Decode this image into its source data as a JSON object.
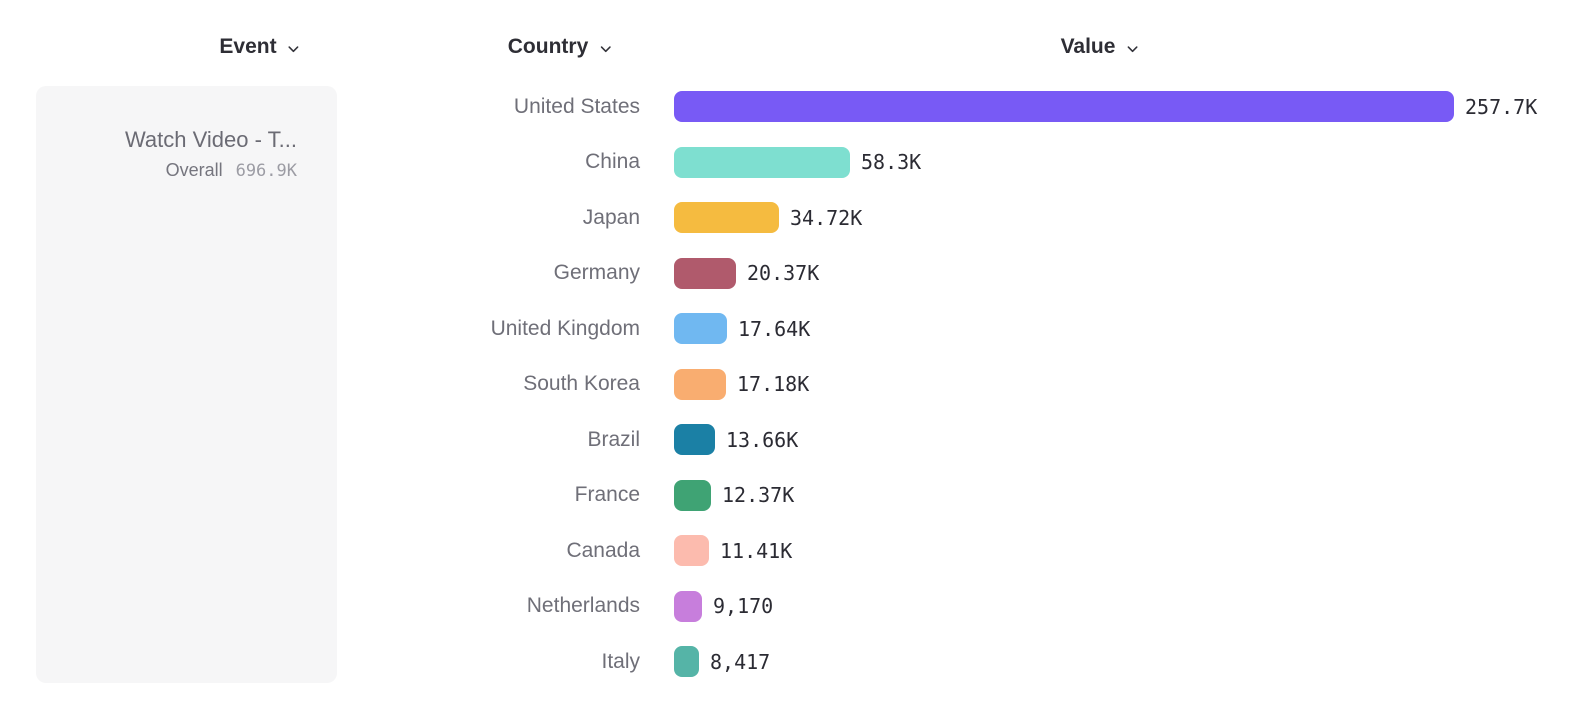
{
  "columns": {
    "event": {
      "label": "Event"
    },
    "country": {
      "label": "Country"
    },
    "value": {
      "label": "Value"
    }
  },
  "event_card": {
    "title": "Watch Video - T...",
    "metric_label": "Overall",
    "metric_value": "696.9K"
  },
  "chart_data": {
    "type": "bar",
    "orientation": "horizontal",
    "title": "",
    "xlabel": "Value",
    "ylabel": "Country",
    "legend": false,
    "grid": false,
    "xlim": [
      0,
      257700
    ],
    "categories": [
      "United States",
      "China",
      "Japan",
      "Germany",
      "United Kingdom",
      "South Korea",
      "Brazil",
      "France",
      "Canada",
      "Netherlands",
      "Italy"
    ],
    "values": [
      257700,
      58300,
      34720,
      20370,
      17640,
      17180,
      13660,
      12370,
      11410,
      9170,
      8417
    ],
    "value_labels": [
      "257.7K",
      "58.3K",
      "34.72K",
      "20.37K",
      "17.64K",
      "17.18K",
      "13.66K",
      "12.37K",
      "11.41K",
      "9,170",
      "8,417"
    ],
    "bar_colors": [
      "#785AF5",
      "#7EDFD0",
      "#F5BB40",
      "#B05A6C",
      "#70B8F1",
      "#F9AD70",
      "#1B80A5",
      "#3FA374",
      "#FCBBAE",
      "#C77EDC",
      "#55B4A7"
    ]
  },
  "colors": {
    "header_text": "#2E2E35",
    "country_label": "#6F6F78",
    "value_label": "#2B2B33",
    "card_background": "#F6F6F7",
    "accent_top_bar": "#785AF5"
  }
}
